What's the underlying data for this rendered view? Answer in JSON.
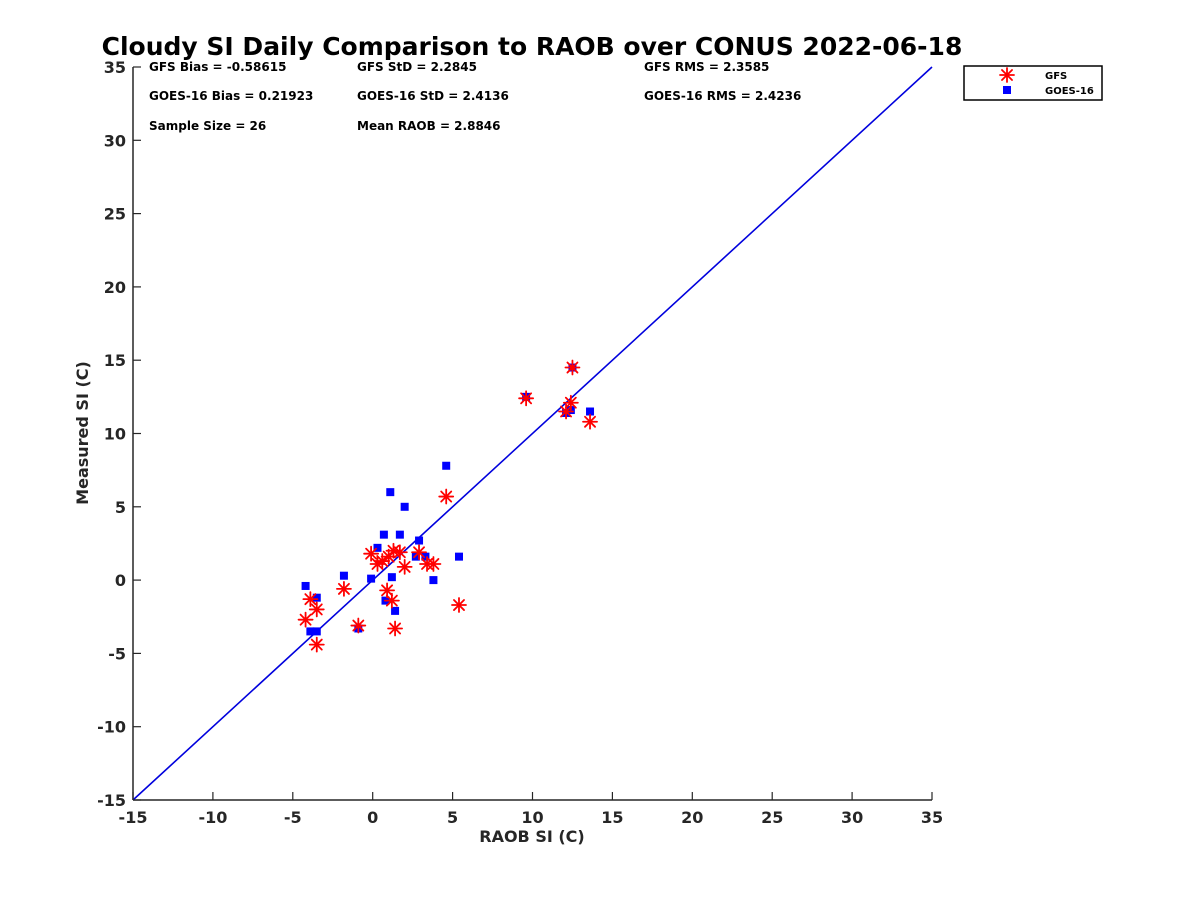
{
  "chart_data": {
    "type": "scatter",
    "title": "Cloudy SI Daily Comparison to RAOB over CONUS 2022-06-18",
    "xlabel": "RAOB SI (C)",
    "ylabel": "Measured SI (C)",
    "xlim": [
      -15,
      35
    ],
    "ylim": [
      -15,
      35
    ],
    "xticks": [
      -15,
      -10,
      -5,
      0,
      5,
      10,
      15,
      20,
      25,
      30,
      35
    ],
    "yticks": [
      -15,
      -10,
      -5,
      0,
      5,
      10,
      15,
      20,
      25,
      30,
      35
    ],
    "grid": false,
    "legend_position": "outside top-right",
    "reference_line": {
      "from": [
        -15,
        -15
      ],
      "to": [
        35,
        35
      ],
      "color": "#0000dd"
    },
    "stats": [
      "GFS Bias = -0.58615",
      "GFS StD = 2.2845",
      "GFS RMS = 2.3585",
      "GOES-16 Bias = 0.21923",
      "GOES-16 StD = 2.4136",
      "GOES-16 RMS = 2.4236",
      "Sample Size = 26",
      "Mean RAOB = 2.8846"
    ],
    "series": [
      {
        "name": "GFS",
        "marker": "asterisk",
        "color": "#ff0000",
        "points": [
          [
            -4.2,
            -2.7
          ],
          [
            -3.9,
            -1.3
          ],
          [
            -3.5,
            -2.0
          ],
          [
            -3.5,
            -4.4
          ],
          [
            -1.8,
            -0.6
          ],
          [
            -0.9,
            -3.1
          ],
          [
            -0.1,
            1.8
          ],
          [
            0.3,
            1.1
          ],
          [
            0.6,
            1.3
          ],
          [
            0.9,
            -0.7
          ],
          [
            1.0,
            1.6
          ],
          [
            1.2,
            -1.4
          ],
          [
            1.3,
            2.0
          ],
          [
            1.4,
            -3.3
          ],
          [
            1.7,
            1.9
          ],
          [
            2.0,
            0.9
          ],
          [
            2.9,
            1.9
          ],
          [
            3.4,
            1.1
          ],
          [
            3.8,
            1.1
          ],
          [
            4.6,
            5.7
          ],
          [
            5.4,
            -1.7
          ],
          [
            9.6,
            12.4
          ],
          [
            12.1,
            11.5
          ],
          [
            12.4,
            12.1
          ],
          [
            12.5,
            14.5
          ],
          [
            13.6,
            10.8
          ]
        ]
      },
      {
        "name": "GOES-16",
        "marker": "square",
        "color": "#0000ff",
        "points": [
          [
            -4.2,
            -0.4
          ],
          [
            -3.9,
            -3.5
          ],
          [
            -3.5,
            -1.2
          ],
          [
            -3.5,
            -3.5
          ],
          [
            -1.8,
            0.3
          ],
          [
            -0.9,
            -3.3
          ],
          [
            -0.1,
            0.1
          ],
          [
            0.3,
            2.2
          ],
          [
            0.7,
            3.1
          ],
          [
            0.8,
            -1.4
          ],
          [
            1.1,
            6.0
          ],
          [
            1.2,
            0.2
          ],
          [
            1.4,
            -2.1
          ],
          [
            1.7,
            3.1
          ],
          [
            2.0,
            5.0
          ],
          [
            2.7,
            1.6
          ],
          [
            2.9,
            2.7
          ],
          [
            3.3,
            1.6
          ],
          [
            3.8,
            0.0
          ],
          [
            4.6,
            7.8
          ],
          [
            5.4,
            1.6
          ],
          [
            9.6,
            12.5
          ],
          [
            12.1,
            11.4
          ],
          [
            12.4,
            11.6
          ],
          [
            12.5,
            14.5
          ],
          [
            13.6,
            11.5
          ]
        ]
      }
    ]
  }
}
